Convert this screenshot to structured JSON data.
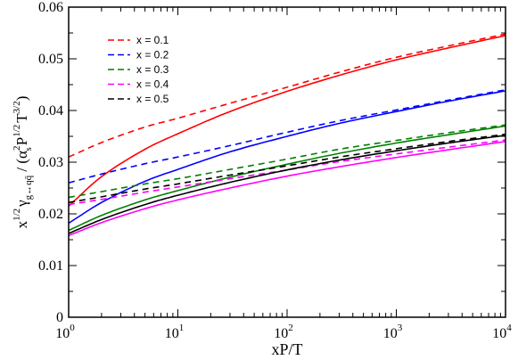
{
  "chart_data": {
    "type": "line",
    "xlabel": "xP/T",
    "ylabel": {
      "x": "x",
      "x_exp": "1/2",
      "gamma": "γ",
      "gamma_sub": "g↔qq̄",
      "sep": " / (",
      "alpha": "α",
      "alpha_sup": "2",
      "alpha_sub": "s",
      "P": "P",
      "P_exp": "1/2",
      "T": "T",
      "T_exp": "3/2",
      "close": ")"
    },
    "x_scale": "log",
    "xlim": [
      1,
      10000
    ],
    "ylim": [
      0,
      0.06
    ],
    "x_ticks": [
      {
        "value": 1,
        "base": "10",
        "exp": "0"
      },
      {
        "value": 10,
        "base": "10",
        "exp": "1"
      },
      {
        "value": 100,
        "base": "10",
        "exp": "2"
      },
      {
        "value": 1000,
        "base": "10",
        "exp": "3"
      },
      {
        "value": 10000,
        "base": "10",
        "exp": "4"
      }
    ],
    "y_ticks": [
      {
        "value": 0,
        "label": "0"
      },
      {
        "value": 0.01,
        "label": "0.01"
      },
      {
        "value": 0.02,
        "label": "0.02"
      },
      {
        "value": 0.03,
        "label": "0.03"
      },
      {
        "value": 0.04,
        "label": "0.04"
      },
      {
        "value": 0.05,
        "label": "0.05"
      },
      {
        "value": 0.06,
        "label": "0.06"
      }
    ],
    "legend_position": "top-left",
    "grid": false,
    "series": [
      {
        "name": "x = 0.1",
        "color": "#ff0000",
        "x": [
          1,
          2,
          5,
          10,
          30,
          100,
          300,
          1000,
          3000,
          10000
        ],
        "solid": [
          0.0215,
          0.0272,
          0.0325,
          0.0355,
          0.0398,
          0.0437,
          0.0468,
          0.0498,
          0.0521,
          0.0545
        ],
        "dashed": [
          0.031,
          0.0338,
          0.0368,
          0.0385,
          0.0414,
          0.0445,
          0.0474,
          0.0503,
          0.0525,
          0.0548
        ]
      },
      {
        "name": "x = 0.2",
        "color": "#0000ff",
        "x": [
          1,
          2,
          5,
          10,
          30,
          100,
          300,
          1000,
          3000,
          10000
        ],
        "solid": [
          0.0182,
          0.0222,
          0.0263,
          0.0286,
          0.032,
          0.035,
          0.0375,
          0.0398,
          0.0418,
          0.0438
        ],
        "dashed": [
          0.026,
          0.0277,
          0.0297,
          0.031,
          0.0332,
          0.0358,
          0.038,
          0.0401,
          0.042,
          0.044
        ]
      },
      {
        "name": "x = 0.3",
        "color": "#008000",
        "x": [
          1,
          2,
          5,
          10,
          30,
          100,
          300,
          1000,
          3000,
          10000
        ],
        "solid": [
          0.0168,
          0.0197,
          0.0227,
          0.0245,
          0.0271,
          0.0296,
          0.0317,
          0.0337,
          0.0353,
          0.037
        ],
        "dashed": [
          0.0232,
          0.0243,
          0.0258,
          0.0268,
          0.0286,
          0.0306,
          0.0325,
          0.0342,
          0.0357,
          0.0372
        ]
      },
      {
        "name": "x = 0.4",
        "color": "#ff00ff",
        "x": [
          1,
          2,
          5,
          10,
          30,
          100,
          300,
          1000,
          3000,
          10000
        ],
        "solid": [
          0.0158,
          0.0183,
          0.021,
          0.0227,
          0.025,
          0.0273,
          0.0291,
          0.0309,
          0.0324,
          0.034
        ],
        "dashed": [
          0.0218,
          0.0228,
          0.0242,
          0.0252,
          0.0268,
          0.0285,
          0.0301,
          0.0316,
          0.0329,
          0.0343
        ]
      },
      {
        "name": "x = 0.5",
        "color": "#000000",
        "x": [
          1,
          2,
          5,
          10,
          30,
          100,
          300,
          1000,
          3000,
          10000
        ],
        "solid": [
          0.0162,
          0.0189,
          0.0218,
          0.0236,
          0.0261,
          0.0285,
          0.0304,
          0.0322,
          0.0337,
          0.0352
        ],
        "dashed": [
          0.0222,
          0.0233,
          0.0248,
          0.0258,
          0.0275,
          0.0293,
          0.031,
          0.0326,
          0.034,
          0.0354
        ]
      }
    ]
  }
}
